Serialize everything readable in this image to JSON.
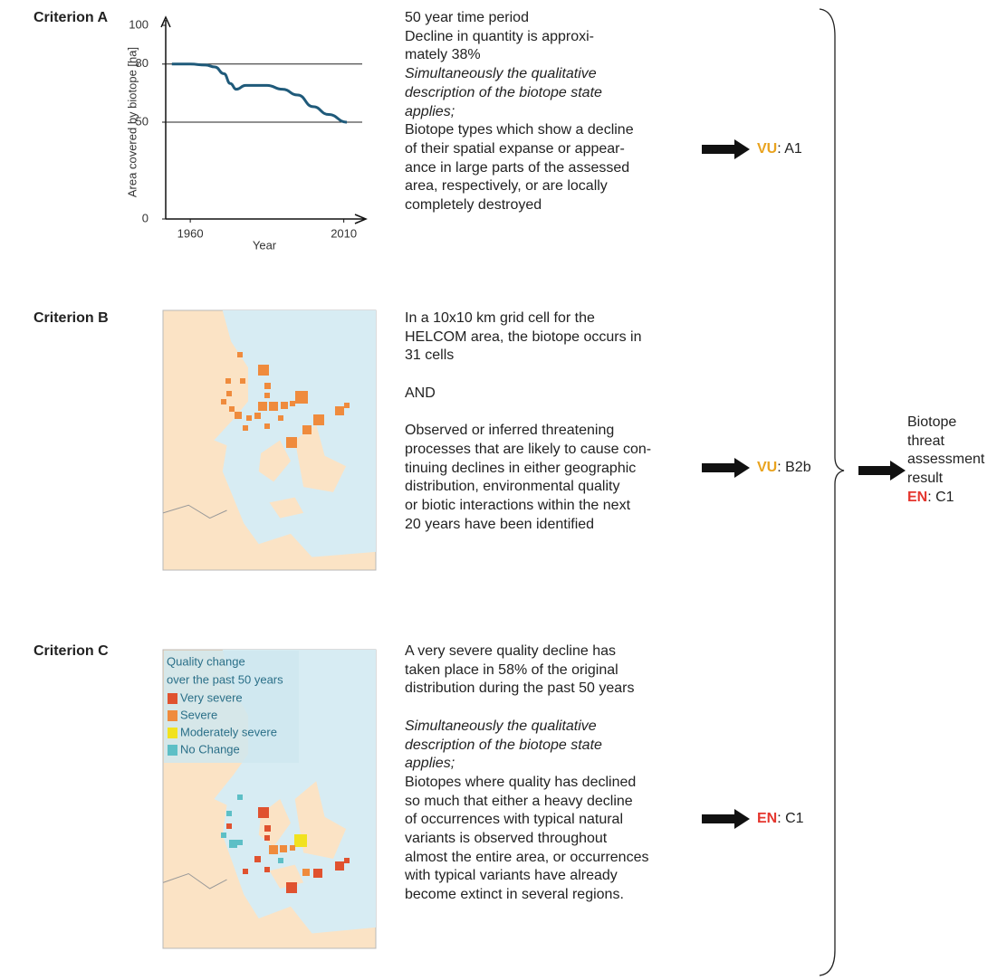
{
  "criteria": [
    {
      "label": "Criterion A",
      "paragraphs": [
        {
          "italic": false,
          "lines": [
            "50 year time period",
            "Decline in quantity is approxi-",
            "mately 38%"
          ]
        },
        {
          "italic": true,
          "lines": [
            "Simultaneously the qualitative",
            "description of the biotope state",
            "applies;"
          ]
        },
        {
          "italic": false,
          "lines": [
            "Biotope types which show a decline",
            "of their spatial expanse or appear-",
            "ance in large parts of the assessed",
            "area, respectively, or are locally",
            "completely destroyed"
          ]
        }
      ],
      "result": {
        "category": "VU",
        "code": ": A1",
        "color": "#e9a31f"
      }
    },
    {
      "label": "Criterion B",
      "paragraphs": [
        {
          "italic": false,
          "lines": [
            "In a 10x10 km grid cell for the",
            "HELCOM area, the biotope occurs in",
            "31 cells"
          ]
        },
        {
          "italic": false,
          "lines": [
            "AND"
          ]
        },
        {
          "italic": false,
          "lines": [
            "Observed or inferred threatening",
            "processes that are likely to cause con-",
            "tinuing declines in either geographic",
            "distribution, environmental quality",
            "or biotic interactions within the next",
            "20 years have been identified"
          ]
        }
      ],
      "result": {
        "category": "VU",
        "code": ": B2b",
        "color": "#e9a31f"
      }
    },
    {
      "label": "Criterion C",
      "paragraphs": [
        {
          "italic": false,
          "lines": [
            "A very severe quality decline has",
            "taken place in 58% of the original",
            "distribution during the past 50 years"
          ]
        },
        {
          "italic": true,
          "lines": [
            "Simultaneously the qualitative",
            "description of the biotope state",
            "applies;"
          ]
        },
        {
          "italic": false,
          "lines": [
            "Biotopes where quality has declined",
            "so much that either a heavy decline",
            "of occurrences with typical natural",
            "variants is observed throughout",
            "almost the entire area, or occurrences",
            "with typical variants have already",
            "become extinct in several regions."
          ]
        }
      ],
      "result": {
        "category": "EN",
        "code": ": C1",
        "color": "#e5362e"
      }
    }
  ],
  "chart": {
    "y_label": "Area covered by biotope [ha]",
    "x_label": "Year",
    "xlim": [
      1952,
      2016
    ],
    "xticks": [
      1960,
      2010
    ],
    "ylim": [
      0,
      100
    ],
    "yticks": [
      0,
      50,
      80,
      100
    ],
    "reference_lines": [
      80,
      50
    ],
    "series": {
      "color": "#1f5a7a",
      "x": [
        1954,
        1960,
        1965,
        1968,
        1971,
        1973,
        1975,
        1978,
        1985,
        1990,
        1995,
        2000,
        2005,
        2011
      ],
      "values": [
        80,
        80,
        79.5,
        78.5,
        75,
        70,
        67,
        69,
        69,
        67,
        64,
        58,
        54,
        50
      ]
    }
  },
  "legend": {
    "title_lines": [
      "Quality change",
      "over the past 50 years"
    ],
    "items": [
      {
        "label": "Very severe",
        "color": "#e0522f"
      },
      {
        "label": "Severe",
        "color": "#ef8b3d"
      },
      {
        "label": "Moderately severe",
        "color": "#f1e21f"
      },
      {
        "label": "No Change",
        "color": "#5dbfc6"
      }
    ]
  },
  "final": {
    "lines": [
      "Biotope",
      "threat",
      "assessment",
      "result"
    ],
    "category": "EN",
    "code": ": C1",
    "color": "#e5362e"
  }
}
